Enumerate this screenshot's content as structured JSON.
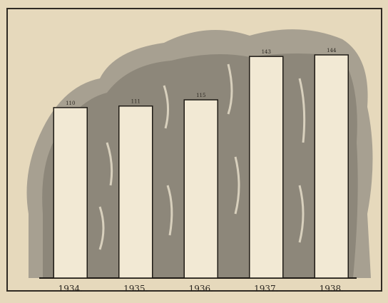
{
  "chart_data": {
    "type": "bar",
    "categories": [
      "1934.",
      "1935.",
      "1936.",
      "1937.",
      "1938."
    ],
    "values": [
      110,
      111,
      115,
      143,
      144
    ],
    "color": "#f2e9d4"
  }
}
